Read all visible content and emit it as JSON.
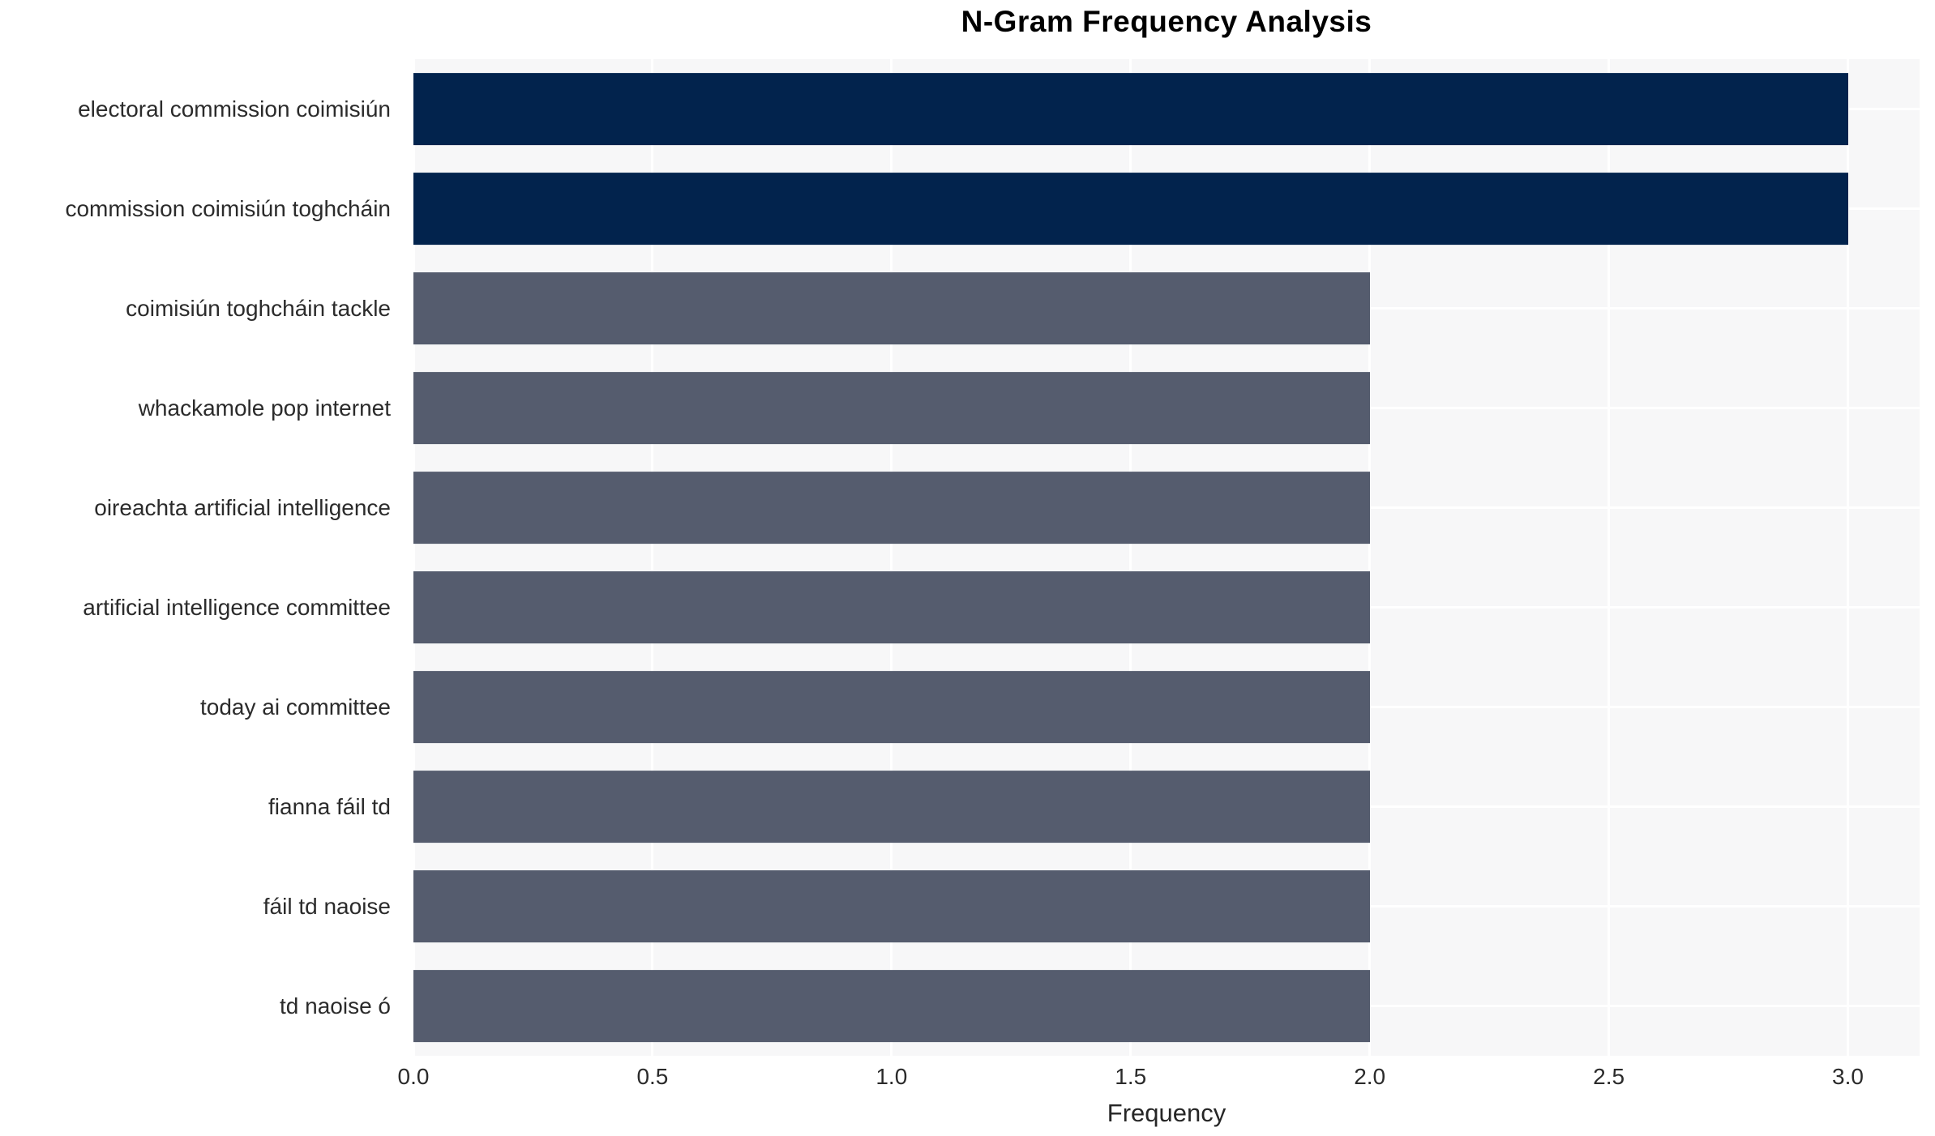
{
  "chart_data": {
    "type": "bar",
    "orientation": "horizontal",
    "title": "N-Gram Frequency Analysis",
    "xlabel": "Frequency",
    "ylabel": "",
    "categories": [
      "electoral commission coimisiún",
      "commission coimisiún toghcháin",
      "coimisiún toghcháin tackle",
      "whackamole pop internet",
      "oireachta artificial intelligence",
      "artificial intelligence committee",
      "today ai committee",
      "fianna fáil td",
      "fáil td naoise",
      "td naoise ó"
    ],
    "values": [
      3,
      3,
      2,
      2,
      2,
      2,
      2,
      2,
      2,
      2
    ],
    "bar_colors": [
      "#02234d",
      "#02234d",
      "#555c6e",
      "#555c6e",
      "#555c6e",
      "#555c6e",
      "#555c6e",
      "#555c6e",
      "#555c6e",
      "#555c6e"
    ],
    "xlim": [
      0,
      3.15
    ],
    "xticks": [
      0,
      0.5,
      1,
      1.5,
      2,
      2.5,
      3
    ],
    "xtick_labels": [
      "0.0",
      "0.5",
      "1.0",
      "1.5",
      "2.0",
      "2.5",
      "3.0"
    ],
    "grid": true,
    "legend_position": "none"
  },
  "style": {
    "panel_background": "#f7f7f8",
    "grid_color": "#ffffff",
    "title_color": "#000000",
    "text_color": "#2b2b2b",
    "accent_dark": "#02234d",
    "accent_gray": "#555c6e"
  }
}
